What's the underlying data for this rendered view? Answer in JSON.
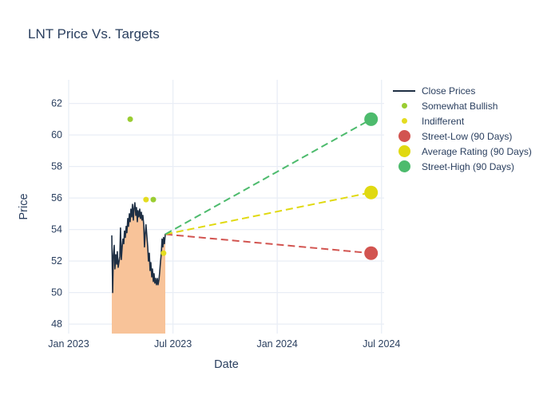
{
  "chart_data": {
    "type": "line",
    "title": "LNT Price Vs. Targets",
    "xlabel": "Date",
    "ylabel": "Price",
    "x_unit": "months since Jan 2023",
    "xlim": [
      0,
      18.15
    ],
    "ylim": [
      47.4,
      63.5
    ],
    "grid": true,
    "legend_position": "right",
    "x_ticks": [
      {
        "value": 0,
        "label": "Jan 2023"
      },
      {
        "value": 6,
        "label": "Jul 2023"
      },
      {
        "value": 12,
        "label": "Jan 2024"
      },
      {
        "value": 18,
        "label": "Jul 2024"
      }
    ],
    "y_ticks": [
      48,
      50,
      52,
      54,
      56,
      58,
      60,
      62
    ],
    "colors": {
      "close_line": "#1e2f44",
      "close_fill": "#f8c399",
      "somewhat_bullish": "#9acd32",
      "indifferent": "#e4dc20",
      "street_low": "#d25450",
      "average_rating": "#e0d911",
      "street_high": "#4dbb6d",
      "grid": "#e9eef6",
      "text": "#2a3f5f"
    },
    "series": [
      {
        "name": "Close Prices",
        "type": "area-line",
        "color": "#1e2f44",
        "fill": "#f8c399",
        "points": [
          [
            2.48,
            53.6
          ],
          [
            2.53,
            50.0
          ],
          [
            2.57,
            52.3
          ],
          [
            2.62,
            53.0
          ],
          [
            2.66,
            51.5
          ],
          [
            2.71,
            52.4
          ],
          [
            2.76,
            51.8
          ],
          [
            2.8,
            52.6
          ],
          [
            2.85,
            51.6
          ],
          [
            2.94,
            52.3
          ],
          [
            2.98,
            54.1
          ],
          [
            3.03,
            52.1
          ],
          [
            3.08,
            52.9
          ],
          [
            3.12,
            53.4
          ],
          [
            3.17,
            53.1
          ],
          [
            3.21,
            53.9
          ],
          [
            3.26,
            53.5
          ],
          [
            3.31,
            54.2
          ],
          [
            3.35,
            53.8
          ],
          [
            3.4,
            54.7
          ],
          [
            3.44,
            54.2
          ],
          [
            3.49,
            55.0
          ],
          [
            3.54,
            54.5
          ],
          [
            3.58,
            55.3
          ],
          [
            3.63,
            54.8
          ],
          [
            3.67,
            55.6
          ],
          [
            3.72,
            54.6
          ],
          [
            3.76,
            55.3
          ],
          [
            3.81,
            55.7
          ],
          [
            3.86,
            54.9
          ],
          [
            3.9,
            55.4
          ],
          [
            3.95,
            54.5
          ],
          [
            3.99,
            55.2
          ],
          [
            4.04,
            54.8
          ],
          [
            4.09,
            55.3
          ],
          [
            4.13,
            54.7
          ],
          [
            4.18,
            55.1
          ],
          [
            4.22,
            54.6
          ],
          [
            4.27,
            54.9
          ],
          [
            4.32,
            54.3
          ],
          [
            4.36,
            52.9
          ],
          [
            4.41,
            53.8
          ],
          [
            4.45,
            54.3
          ],
          [
            4.5,
            53.6
          ],
          [
            4.55,
            52.9
          ],
          [
            4.59,
            52.0
          ],
          [
            4.64,
            52.5
          ],
          [
            4.68,
            51.4
          ],
          [
            4.73,
            51.9
          ],
          [
            4.78,
            51.0
          ],
          [
            4.82,
            51.5
          ],
          [
            4.87,
            50.7
          ],
          [
            4.91,
            51.2
          ],
          [
            4.96,
            50.6
          ],
          [
            5.0,
            50.9
          ],
          [
            5.05,
            50.5
          ],
          [
            5.1,
            50.9
          ],
          [
            5.14,
            50.5
          ],
          [
            5.19,
            50.8
          ],
          [
            5.23,
            51.2
          ],
          [
            5.28,
            51.9
          ],
          [
            5.33,
            52.5
          ],
          [
            5.37,
            53.4
          ],
          [
            5.42,
            52.9
          ],
          [
            5.46,
            53.5
          ],
          [
            5.51,
            53.1
          ],
          [
            5.56,
            53.7
          ]
        ]
      },
      {
        "name": "Somewhat Bullish",
        "type": "scatter",
        "color": "#9acd32",
        "size": 3.5,
        "points": [
          [
            3.54,
            61.0
          ],
          [
            4.87,
            55.9
          ]
        ]
      },
      {
        "name": "Indifferent",
        "type": "scatter",
        "color": "#e4dc20",
        "size": 3.5,
        "points": [
          [
            4.45,
            55.9
          ],
          [
            5.46,
            52.5
          ]
        ]
      },
      {
        "name": "Street-Low (90 Days)",
        "type": "target",
        "color": "#d25450",
        "dash": "9 5",
        "marker_size": 8.5,
        "from": [
          5.56,
          53.7
        ],
        "to": [
          17.4,
          52.5
        ]
      },
      {
        "name": "Average Rating (90 Days)",
        "type": "target",
        "color": "#e0d911",
        "dash": "9 5",
        "marker_size": 8.5,
        "from": [
          5.56,
          53.7
        ],
        "to": [
          17.4,
          56.35
        ]
      },
      {
        "name": "Street-High (90 Days)",
        "type": "target",
        "color": "#4dbb6d",
        "dash": "9 5",
        "marker_size": 8.5,
        "from": [
          5.56,
          53.7
        ],
        "to": [
          17.4,
          61.0
        ]
      }
    ]
  }
}
